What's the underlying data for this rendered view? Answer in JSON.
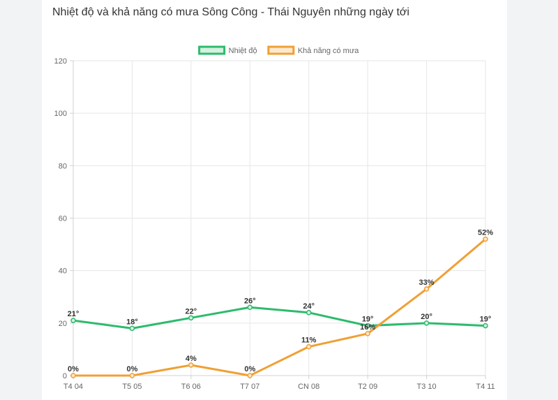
{
  "chart_data": {
    "type": "line",
    "title": "Nhiệt độ và khả năng có mưa Sông Công - Thái Nguyên những ngày tới",
    "categories": [
      "T4 04",
      "T5 05",
      "T6 06",
      "T7 07",
      "CN 08",
      "T2 09",
      "T3 10",
      "T4 11"
    ],
    "ylim": [
      0,
      120
    ],
    "yticks": [
      0,
      20,
      40,
      60,
      80,
      100,
      120
    ],
    "grid": true,
    "legend_position": "top-center",
    "series": [
      {
        "name": "Nhiệt độ",
        "color": "#2dbb6d",
        "fill": "#d5f1e0",
        "values": [
          21,
          18,
          22,
          26,
          24,
          19,
          20,
          19
        ],
        "labels": [
          "21°",
          "18°",
          "22°",
          "26°",
          "24°",
          "19°",
          "20°",
          "19°"
        ]
      },
      {
        "name": "Khả năng có mưa",
        "color": "#f0a034",
        "fill": "#fde9cf",
        "values": [
          0,
          0,
          4,
          0,
          11,
          16,
          33,
          52
        ],
        "labels": [
          "0%",
          "0%",
          "4%",
          "0%",
          "11%",
          "16%",
          "33%",
          "52%"
        ]
      }
    ]
  }
}
